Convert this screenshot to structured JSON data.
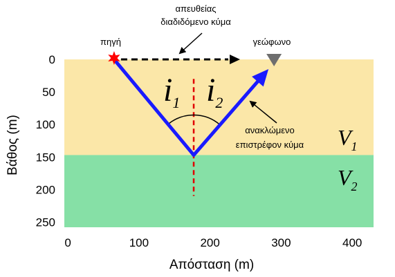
{
  "axes": {
    "xlabel": "Απόσταση (m)",
    "ylabel": "Βάθος (m)",
    "x_ticks": [
      "0",
      "100",
      "200",
      "300",
      "400"
    ],
    "y_ticks": [
      "0",
      "50",
      "100",
      "150",
      "200",
      "250"
    ],
    "xlim": [
      -5,
      430
    ],
    "ylim": [
      0,
      258
    ]
  },
  "layers": {
    "upper": {
      "label": "V",
      "sub": "1",
      "color": "#fbe7a8",
      "depth_top": 0,
      "depth_bottom": 147
    },
    "lower": {
      "label": "V",
      "sub": "2",
      "color": "#86e0a6",
      "depth_top": 147,
      "depth_bottom": 258
    }
  },
  "source": {
    "label": "πηγή",
    "x": 65,
    "depth": 0,
    "color": "#ff0000"
  },
  "geophone": {
    "label": "γεώφωνο",
    "x": 290,
    "depth": 0,
    "color": "#6e6e6e"
  },
  "reflection_point": {
    "x": 177,
    "depth": 147
  },
  "direct_wave": {
    "label_line1": "απευθείας",
    "label_line2": "διαδιδόμενο κύμα",
    "color": "#000000"
  },
  "reflected_wave": {
    "label_line1": "ανακλώμενο",
    "label_line2": "επιστρέφον κύμα",
    "color": "#1a1aff"
  },
  "normal_line": {
    "x": 177,
    "depth_from": 30,
    "depth_to": 210,
    "color": "#e00000"
  },
  "angles": [
    {
      "label": "i",
      "sub": "1"
    },
    {
      "label": "i",
      "sub": "2"
    }
  ]
}
